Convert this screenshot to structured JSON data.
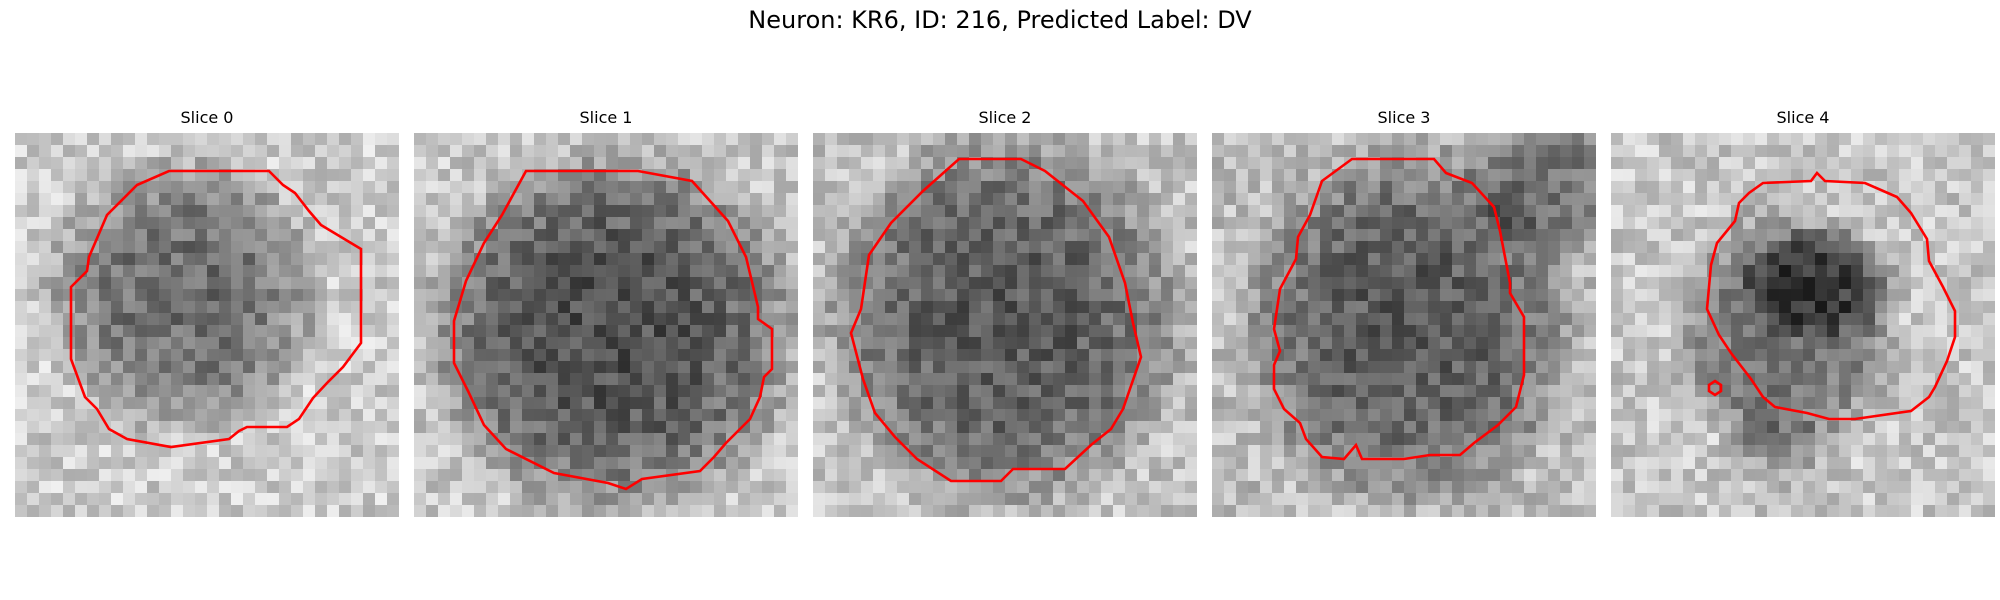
{
  "figure": {
    "title": "Neuron: KR6, ID: 216, Predicted Label: DV"
  },
  "panels": [
    {
      "title": "Slice 0",
      "image_description": "noisy grayscale microscopy crop, darker blob in center",
      "contour_color": "#ff0000"
    },
    {
      "title": "Slice 1",
      "image_description": "noisy grayscale microscopy crop, large dark round cell body",
      "contour_color": "#ff0000"
    },
    {
      "title": "Slice 2",
      "image_description": "noisy grayscale microscopy crop, large dark round cell body",
      "contour_color": "#ff0000"
    },
    {
      "title": "Slice 3",
      "image_description": "noisy grayscale microscopy crop, dark region with darker top-right",
      "contour_color": "#ff0000"
    },
    {
      "title": "Slice 4",
      "image_description": "noisy grayscale microscopy crop, dark region with bright surroundings and small extra contour",
      "contour_color": "#ff0000"
    }
  ],
  "colors": {
    "background": "#ffffff",
    "contour": "#ff0000",
    "text": "#000000"
  }
}
